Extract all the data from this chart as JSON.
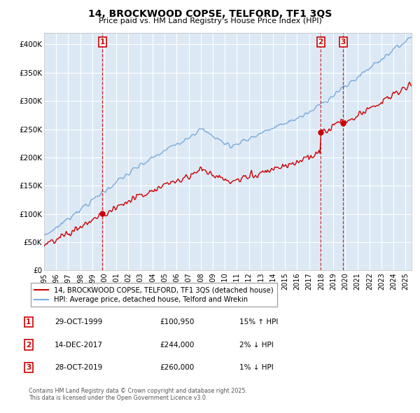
{
  "title": "14, BROCKWOOD COPSE, TELFORD, TF1 3QS",
  "subtitle": "Price paid vs. HM Land Registry's House Price Index (HPI)",
  "ylim": [
    0,
    420000
  ],
  "yticks": [
    0,
    50000,
    100000,
    150000,
    200000,
    250000,
    300000,
    350000,
    400000
  ],
  "ytick_labels": [
    "£0",
    "£50K",
    "£100K",
    "£150K",
    "£200K",
    "£250K",
    "£300K",
    "£350K",
    "£400K"
  ],
  "background_color": "#ffffff",
  "plot_bg_color": "#dce9f5",
  "grid_color": "#ffffff",
  "red_color": "#cc0000",
  "blue_color": "#7aaadd",
  "sale_years": [
    1999.83,
    2017.96,
    2019.83
  ],
  "sale_prices": [
    100950,
    244000,
    260000
  ],
  "sale_labels": [
    "1",
    "2",
    "3"
  ],
  "legend_line1": "14, BROCKWOOD COPSE, TELFORD, TF1 3QS (detached house)",
  "legend_line2": "HPI: Average price, detached house, Telford and Wrekin",
  "table_data": [
    [
      "1",
      "29-OCT-1999",
      "£100,950",
      "15% ↑ HPI"
    ],
    [
      "2",
      "14-DEC-2017",
      "£244,000",
      "2% ↓ HPI"
    ],
    [
      "3",
      "28-OCT-2019",
      "£260,000",
      "1% ↓ HPI"
    ]
  ],
  "footnote": "Contains HM Land Registry data © Crown copyright and database right 2025.\nThis data is licensed under the Open Government Licence v3.0.",
  "start_year": 1995.0,
  "end_year": 2025.5
}
